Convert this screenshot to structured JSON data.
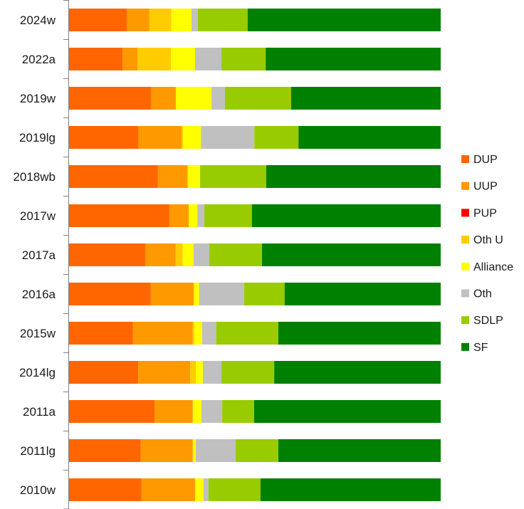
{
  "chart_data": {
    "type": "bar",
    "orientation": "horizontal",
    "stacked": "percent",
    "title": "",
    "xlabel": "",
    "ylabel": "",
    "xlim": [
      0,
      100
    ],
    "grid": false,
    "legend_position": "right",
    "categories": [
      "2024w",
      "2022a",
      "2019w",
      "2019lg",
      "2018wb",
      "2017w",
      "2017a",
      "2016a",
      "2015w",
      "2014lg",
      "2011a",
      "2011lg",
      "2010w"
    ],
    "series": [
      {
        "name": "DUP",
        "color": "#FF6600",
        "values": [
          15.5,
          14.4,
          22.0,
          18.6,
          23.9,
          27.0,
          20.5,
          22.0,
          17.2,
          18.6,
          23.0,
          19.3,
          19.5
        ]
      },
      {
        "name": "UUP",
        "color": "#FF9900",
        "values": [
          6.1,
          4.0,
          6.7,
          11.7,
          8.0,
          5.2,
          8.2,
          11.5,
          16.1,
          14.0,
          10.3,
          14.0,
          14.4
        ]
      },
      {
        "name": "PUP",
        "color": "#FF0000",
        "values": [
          0,
          0,
          0,
          0,
          0,
          0,
          0,
          0,
          0,
          0,
          0,
          0,
          0
        ]
      },
      {
        "name": "Oth U",
        "color": "#FFCC00",
        "values": [
          5.9,
          9.0,
          0,
          0.4,
          0,
          0,
          1.9,
          0.2,
          0.4,
          1.5,
          0,
          0,
          0
        ]
      },
      {
        "name": "Alliance",
        "color": "#FFFF00",
        "values": [
          5.4,
          6.5,
          9.6,
          4.8,
          3.3,
          2.3,
          2.9,
          1.3,
          2.1,
          1.9,
          2.3,
          0.8,
          2.3
        ]
      },
      {
        "name": "Oth",
        "color": "#C0C0C0",
        "values": [
          1.7,
          7.1,
          3.6,
          14.4,
          0,
          1.9,
          4.2,
          12.1,
          3.8,
          5.0,
          5.6,
          10.7,
          1.3
        ]
      },
      {
        "name": "SDLP",
        "color": "#99CC00",
        "values": [
          13.4,
          11.9,
          17.8,
          11.9,
          17.8,
          12.8,
          14.2,
          10.9,
          16.7,
          14.2,
          8.6,
          11.5,
          14.0
        ]
      },
      {
        "name": "SF",
        "color": "#008000",
        "values": [
          51.9,
          47.1,
          40.2,
          38.3,
          46.9,
          50.8,
          48.1,
          42.0,
          43.7,
          44.8,
          50.2,
          43.7,
          48.5
        ]
      }
    ]
  },
  "axis_color": "#808080"
}
